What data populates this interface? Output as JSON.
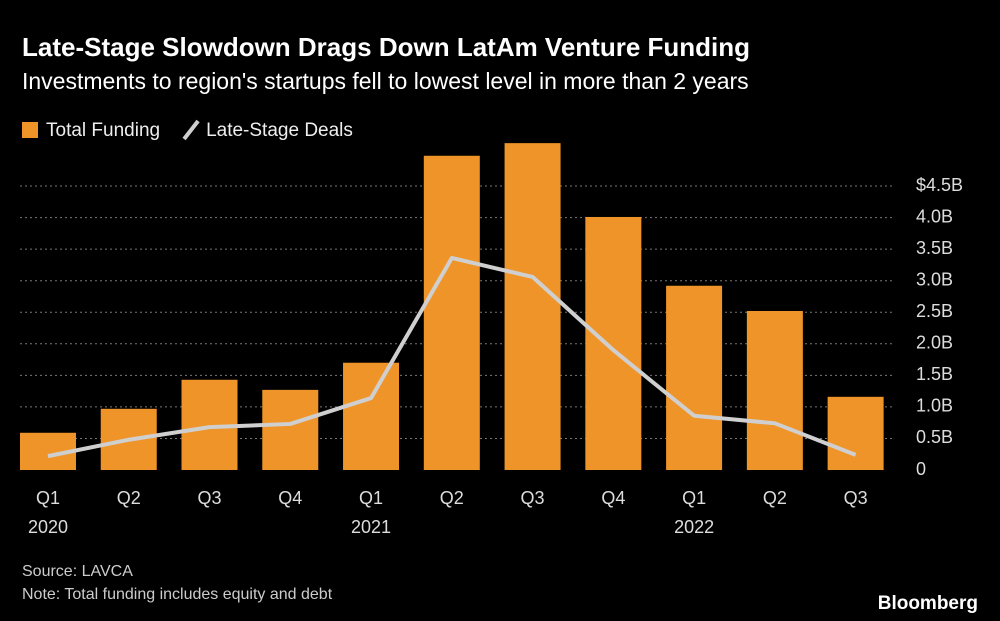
{
  "chart_data": {
    "type": "bar",
    "title": "Late-Stage Slowdown Drags Down LatAm Venture Funding",
    "subtitle": "Investments to region's startups fell to lowest level in more than 2 years",
    "categories": [
      "Q1",
      "Q2",
      "Q3",
      "Q4",
      "Q1",
      "Q2",
      "Q3",
      "Q4",
      "Q1",
      "Q2",
      "Q3"
    ],
    "years": [
      "2020",
      null,
      null,
      null,
      "2021",
      null,
      null,
      null,
      "2022",
      null,
      null
    ],
    "series": [
      {
        "name": "Total Funding",
        "color": "#ef9429",
        "values": [
          0.59,
          0.97,
          1.43,
          1.27,
          1.7,
          4.98,
          5.18,
          4.01,
          2.92,
          2.52,
          1.16
        ]
      },
      {
        "name": "Late-Stage Deals",
        "color": "#cfcfcf",
        "type": "line",
        "values": [
          0.22,
          0.48,
          0.68,
          0.73,
          1.14,
          3.36,
          3.06,
          1.9,
          0.86,
          0.74,
          0.24
        ]
      }
    ],
    "ylim": [
      0,
      5.3
    ],
    "yticks": [
      0,
      {
        "value": 0.5,
        "label": "0.5B"
      },
      {
        "value": 1,
        "label": "1.0B"
      },
      {
        "value": 1.5,
        "label": "1.5B"
      },
      {
        "value": 2,
        "label": "2.0B"
      },
      {
        "value": 2.5,
        "label": "2.5B"
      },
      {
        "value": 3,
        "label": "3.0B"
      },
      {
        "value": 3.5,
        "label": "3.5B"
      },
      {
        "value": 4,
        "label": "4.0B"
      },
      {
        "value": 4.5,
        "label": "$4.5B"
      }
    ],
    "grid": true,
    "source": "Source: LAVCA",
    "note": "Note: Total funding includes equity and debt",
    "brand": "Bloomberg"
  }
}
